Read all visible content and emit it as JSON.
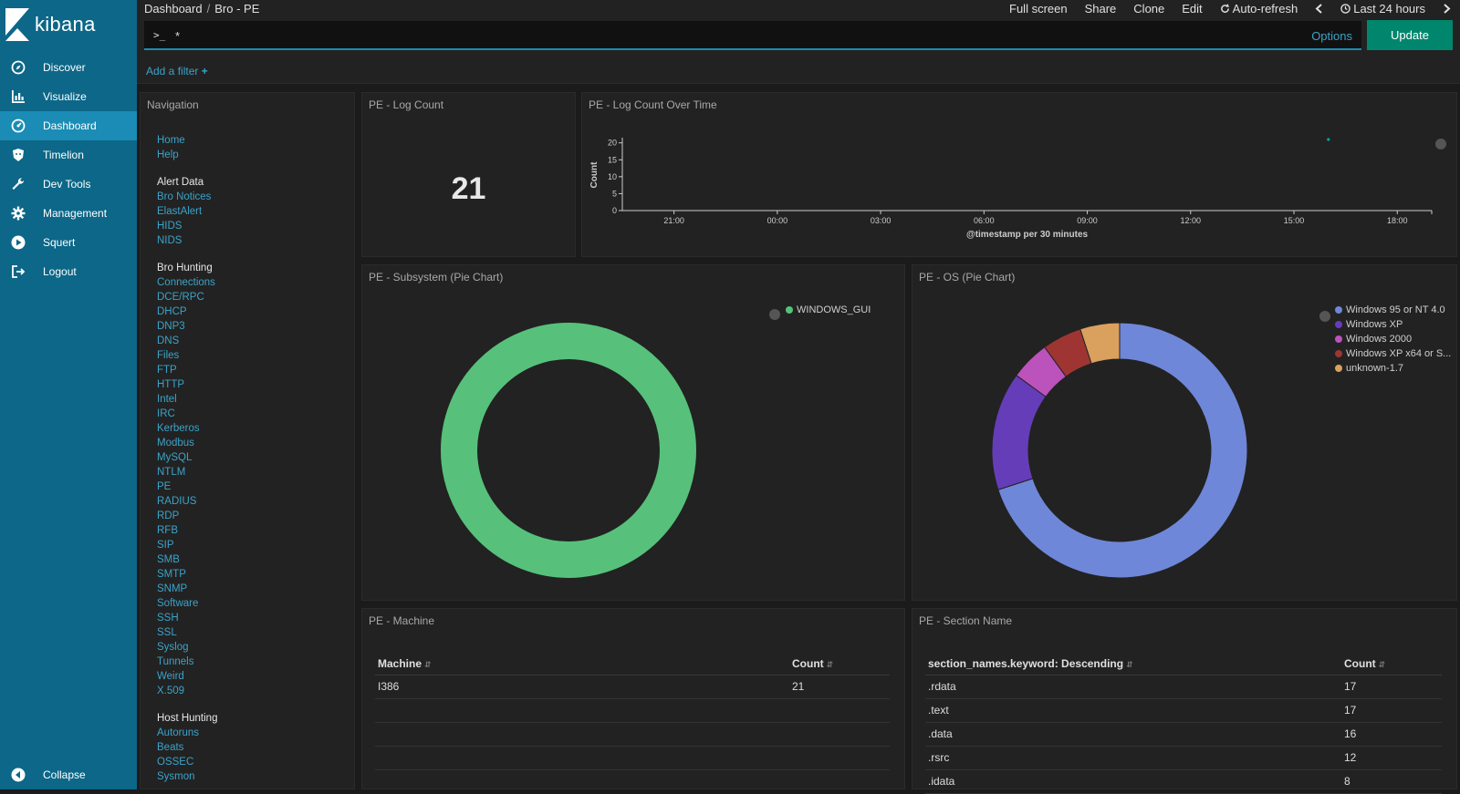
{
  "app": {
    "name": "kibana"
  },
  "sidebar": {
    "items": [
      {
        "label": "Discover",
        "icon": "compass-icon"
      },
      {
        "label": "Visualize",
        "icon": "bar-chart-icon"
      },
      {
        "label": "Dashboard",
        "icon": "dashboard-icon",
        "active": true
      },
      {
        "label": "Timelion",
        "icon": "timelion-icon"
      },
      {
        "label": "Dev Tools",
        "icon": "wrench-icon"
      },
      {
        "label": "Management",
        "icon": "gear-icon"
      },
      {
        "label": "Squert",
        "icon": "play-circle-icon"
      },
      {
        "label": "Logout",
        "icon": "logout-icon"
      }
    ],
    "collapse_label": "Collapse"
  },
  "header": {
    "breadcrumb": [
      "Dashboard",
      "Bro - PE"
    ],
    "breadcrumb_sep": "/",
    "menu": {
      "full_screen": "Full screen",
      "share": "Share",
      "clone": "Clone",
      "edit": "Edit",
      "auto_refresh": "Auto-refresh",
      "time_range": "Last 24 hours"
    }
  },
  "query": {
    "prompt": ">_",
    "value": "*",
    "options_label": "Options",
    "update_label": "Update",
    "add_filter_label": "Add a filter"
  },
  "navigation_panel": {
    "title": "Navigation",
    "groups": [
      {
        "heading": "",
        "links": [
          "Home",
          "Help"
        ]
      },
      {
        "heading": "Alert Data",
        "links": [
          "Bro Notices",
          "ElastAlert",
          "HIDS",
          "NIDS"
        ]
      },
      {
        "heading": "Bro Hunting",
        "links": [
          "Connections",
          "DCE/RPC",
          "DHCP",
          "DNP3",
          "DNS",
          "Files",
          "FTP",
          "HTTP",
          "Intel",
          "IRC",
          "Kerberos",
          "Modbus",
          "MySQL",
          "NTLM",
          "PE",
          "RADIUS",
          "RDP",
          "RFB",
          "SIP",
          "SMB",
          "SMTP",
          "SNMP",
          "Software",
          "SSH",
          "SSL",
          "Syslog",
          "Tunnels",
          "Weird",
          "X.509"
        ]
      },
      {
        "heading": "Host Hunting",
        "links": [
          "Autoruns",
          "Beats",
          "OSSEC",
          "Sysmon"
        ]
      }
    ]
  },
  "log_count_panel": {
    "title": "PE - Log Count",
    "value": "21"
  },
  "log_over_time_panel": {
    "title": "PE - Log Count Over Time",
    "chart_data": {
      "type": "scatter",
      "xlabel": "@timestamp per 30 minutes",
      "ylabel": "Count",
      "x_ticks": [
        "21:00",
        "00:00",
        "03:00",
        "06:00",
        "09:00",
        "12:00",
        "15:00",
        "18:00"
      ],
      "y_ticks": [
        "0",
        "5",
        "10",
        "15",
        "20"
      ],
      "ylim": [
        0,
        21
      ],
      "x_range_hours": [
        19.5,
        43.0
      ],
      "points": [
        {
          "x_hours": 40.0,
          "y": 21
        }
      ]
    }
  },
  "subsystem_panel": {
    "title": "PE - Subsystem (Pie Chart)",
    "chart_data": {
      "type": "pie",
      "series": [
        {
          "name": "WINDOWS_GUI",
          "value": 21,
          "color": "#57c17b"
        }
      ]
    }
  },
  "os_panel": {
    "title": "PE - OS (Pie Chart)",
    "chart_data": {
      "type": "pie",
      "series": [
        {
          "name": "Windows 95 or NT 4.0",
          "value": 14,
          "color": "#6f87d8"
        },
        {
          "name": "Windows XP",
          "value": 3,
          "color": "#663db8"
        },
        {
          "name": "Windows 2000",
          "value": 1,
          "color": "#bc52bc"
        },
        {
          "name": "Windows XP x64 or S...",
          "value": 1,
          "color": "#9e3533"
        },
        {
          "name": "unknown-1.7",
          "value": 1,
          "color": "#daa05d"
        }
      ]
    }
  },
  "machine_panel": {
    "title": "PE - Machine",
    "headers": [
      "Machine",
      "Count"
    ],
    "rows": [
      [
        "I386",
        "21"
      ]
    ]
  },
  "section_panel": {
    "title": "PE - Section Name",
    "headers": [
      "section_names.keyword: Descending",
      "Count"
    ],
    "rows": [
      [
        ".rdata",
        "17"
      ],
      [
        ".text",
        "17"
      ],
      [
        ".data",
        "16"
      ],
      [
        ".rsrc",
        "12"
      ],
      [
        ".idata",
        "8"
      ]
    ]
  }
}
